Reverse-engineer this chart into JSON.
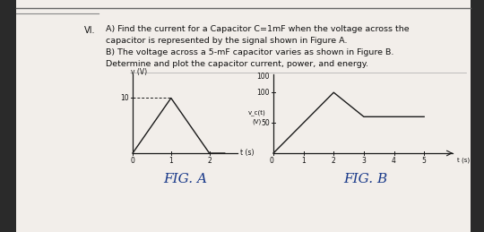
{
  "text_block": {
    "number": "VI.",
    "lines": [
      "A) Find the current for a Capacitor C=1mF when the voltage across the",
      "capacitor is represented by the signal shown in Figure A.",
      "B) The voltage across a 5-mF capacitor varies as shown in Figure B.",
      "Determine and plot the capacitor current, power, and energy."
    ]
  },
  "fig_a": {
    "x": [
      0,
      1,
      2,
      2.4
    ],
    "y": [
      0,
      10,
      0,
      0
    ],
    "dashed_y": 10,
    "dashed_x_start": 0,
    "dashed_x_end": 1,
    "xlabel": "t (s)",
    "ylabel": "v (V)",
    "xlim": [
      -0.1,
      2.7
    ],
    "ylim": [
      -1.5,
      13
    ],
    "xticks": [
      0,
      1,
      2
    ],
    "yticks": [
      10
    ],
    "label": "FIG. A",
    "ylabel_small": "v (V)"
  },
  "fig_b": {
    "x": [
      0,
      2,
      3,
      5.0
    ],
    "y": [
      0,
      100,
      60,
      60
    ],
    "xlabel": "t (s)",
    "ylabel_line1": "v_c(t)",
    "ylabel_line2": "(V)",
    "xlim": [
      -0.1,
      5.5
    ],
    "ylim": [
      -8,
      118
    ],
    "xticks": [
      0,
      1,
      2,
      3,
      4,
      5
    ],
    "yticks": [
      50,
      100
    ],
    "label": "FIG. B"
  },
  "bg_color": "#e8e4dc",
  "page_color": "#f2eeea",
  "line_color": "#1a1a1a",
  "text_color": "#111111",
  "handwriting_color": "#1a3a8a",
  "top_line_color": "#666666",
  "left_line_color": "#888888"
}
